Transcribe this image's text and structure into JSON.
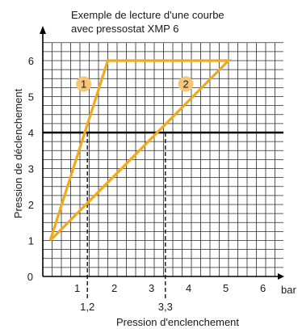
{
  "chart_data": {
    "type": "line",
    "title_line1": "Exemple de lecture d'une courbe",
    "title_line2": "avec pressostat XMP 6",
    "xlabel": "Pression d'enclenchement",
    "ylabel": "Pression de déclenchement",
    "x_unit": "bar",
    "xlim": [
      0,
      6.5
    ],
    "ylim": [
      0,
      6.6
    ],
    "x_ticks": [
      {
        "value": 0,
        "label": "0"
      },
      {
        "value": 1,
        "label": "1"
      },
      {
        "value": 2,
        "label": "2"
      },
      {
        "value": 3,
        "label": "3"
      },
      {
        "value": 4,
        "label": "4"
      },
      {
        "value": 5,
        "label": "5"
      },
      {
        "value": 6,
        "label": "6"
      }
    ],
    "y_ticks": [
      {
        "value": 0,
        "label": ""
      },
      {
        "value": 1,
        "label": "1"
      },
      {
        "value": 2,
        "label": "2"
      },
      {
        "value": 3,
        "label": "3"
      },
      {
        "value": 4,
        "label": "4"
      },
      {
        "value": 5,
        "label": "5"
      },
      {
        "value": 6,
        "label": "6"
      }
    ],
    "origin_label": "0",
    "grid": true,
    "grid_step": 0.25,
    "outline": {
      "color": "#f0a81c",
      "points": [
        [
          0.2,
          1.0
        ],
        [
          1.75,
          6.0
        ],
        [
          5.0,
          6.0
        ],
        [
          0.2,
          1.0
        ]
      ]
    },
    "reference_line": {
      "y": 4
    },
    "markers": [
      {
        "x": 1.2,
        "y": 4,
        "label": "1,2"
      },
      {
        "x": 3.3,
        "y": 4,
        "label": "3,3"
      }
    ],
    "curve_labels": [
      {
        "label": "1",
        "x": 1.1,
        "y": 5.35
      },
      {
        "label": "2",
        "x": 3.85,
        "y": 5.35
      }
    ],
    "badge_color": "#f5c57a"
  }
}
